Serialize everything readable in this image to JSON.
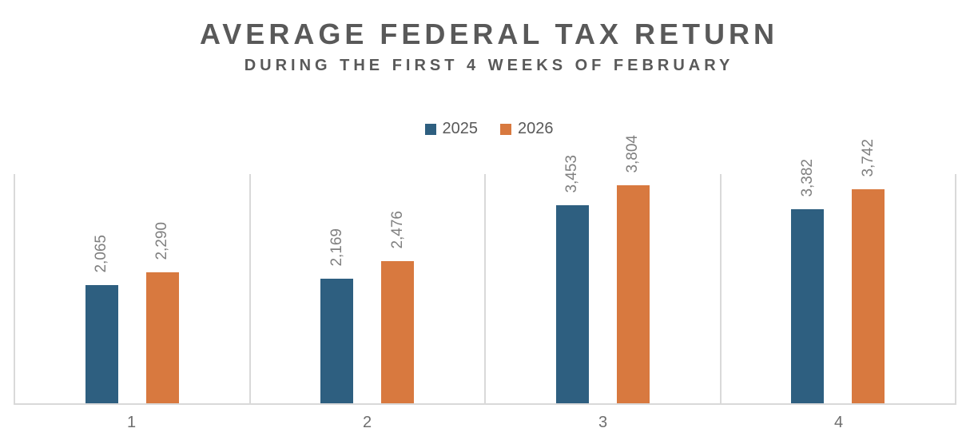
{
  "title": "AVERAGE FEDERAL TAX RETURN",
  "subtitle": "DURING THE FIRST 4 WEEKS OF FEBRUARY",
  "colors": {
    "series_2025": "#2e5f80",
    "series_2026": "#d8793f",
    "gridline": "#d9d9d9",
    "heading_text": "#595959",
    "data_label_text": "#7f7f7f"
  },
  "legend": [
    {
      "label": "2025",
      "color": "#2e5f80"
    },
    {
      "label": "2026",
      "color": "#d8793f"
    }
  ],
  "chart_data": {
    "type": "bar",
    "title": "AVERAGE FEDERAL TAX RETURN",
    "subtitle": "DURING THE FIRST 4 WEEKS OF FEBRUARY",
    "categories": [
      "1",
      "2",
      "3",
      "4"
    ],
    "series": [
      {
        "name": "2025",
        "color": "#2e5f80",
        "values": [
          2065,
          2169,
          3453,
          3382
        ],
        "labels": [
          "2,065",
          "2,169",
          "3,453",
          "3,382"
        ]
      },
      {
        "name": "2026",
        "color": "#d8793f",
        "values": [
          2290,
          2476,
          3804,
          3742
        ],
        "labels": [
          "2,290",
          "2,476",
          "3,804",
          "3,742"
        ]
      }
    ],
    "xlabel": "",
    "ylabel": "",
    "ylim": [
      0,
      4000
    ],
    "grid": "vertical category separators only",
    "legend_position": "top-center",
    "data_label_rotation": -90,
    "data_label_position": "outside-end"
  }
}
